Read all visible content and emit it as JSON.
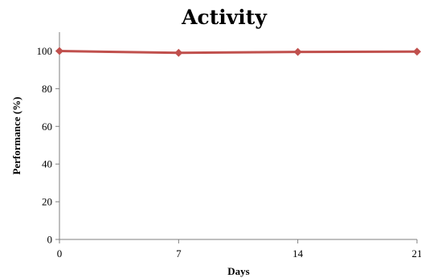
{
  "chart_data": {
    "type": "line",
    "title": "Activity",
    "xlabel": "Days",
    "ylabel": "Performance (%)",
    "x": [
      0,
      7,
      14,
      21
    ],
    "xticks": [
      "0",
      "7",
      "14",
      "21"
    ],
    "yticks": [
      "0",
      "20",
      "40",
      "60",
      "80",
      "100"
    ],
    "xlim": [
      0,
      21
    ],
    "ylim": [
      0,
      110
    ],
    "grid": false,
    "legend": "none",
    "series": [
      {
        "values": [
          100,
          99,
          99.5,
          99.7
        ],
        "color": "#c0504d",
        "marker": "diamond"
      }
    ]
  }
}
